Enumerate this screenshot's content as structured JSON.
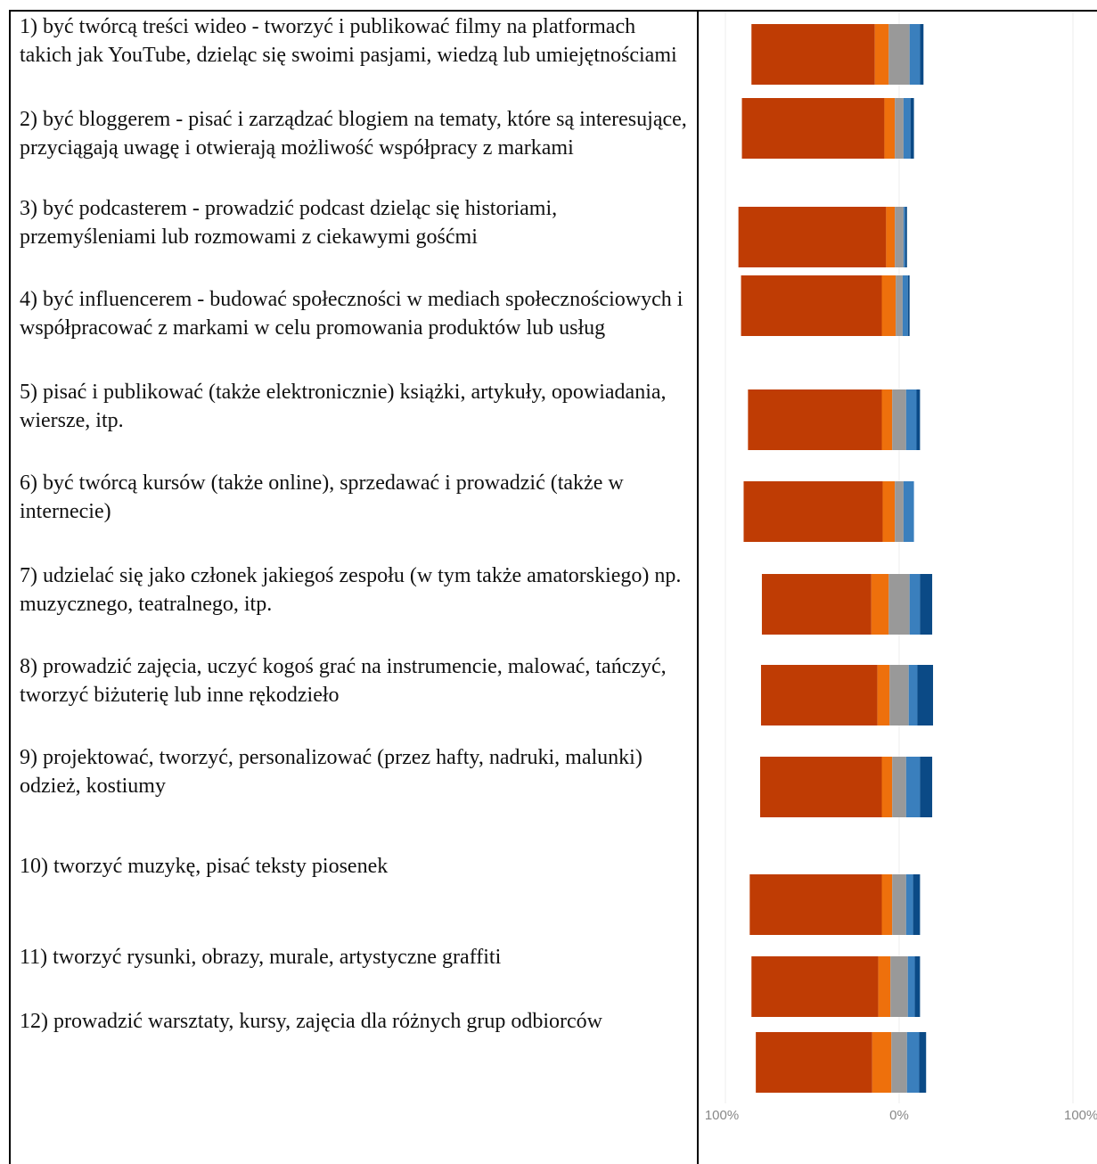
{
  "items": [
    "1) być twórcą treści wideo - tworzyć i publikować filmy na platformach takich jak YouTube, dzieląc się swoimi pasjami, wiedzą lub umiejętnościami",
    "2) być bloggerem - pisać i zarządzać blogiem na tematy, które są interesujące, przyciągają uwagę i otwierają możliwość współpracy z markami",
    "3) być podcasterem - prowadzić podcast dzieląc się historiami, przemyśleniami lub rozmowami z ciekawymi gośćmi",
    "4) być influencerem - budować społeczności w mediach społecznościowych i współpracować z markami w celu promowania produktów lub usług",
    "5) pisać i publikować (także elektronicznie) książki, artykuły, opowiadania, wiersze, itp.",
    "6) być twórcą kursów (także online), sprzedawać i prowadzić (także w internecie)",
    "7) udzielać się jako członek jakiegoś zespołu (w tym także amatorskiego) np. muzycznego, teatralnego, itp.",
    "8) prowadzić zajęcia, uczyć kogoś grać na instrumencie, malować, tańczyć, tworzyć biżuterię lub inne rękodzieło",
    "9) projektować, tworzyć, personalizować (przez hafty, nadruki, malunki) odzież, kostiumy",
    "10) tworzyć muzykę, pisać teksty piosenek",
    "11) tworzyć rysunki, obrazy, murale, artystyczne graffiti",
    "12) prowadzić warsztaty, kursy, zajęcia dla różnych grup odbiorców"
  ],
  "chart_data": {
    "type": "bar",
    "orientation": "horizontal",
    "stacked": "diverging",
    "xlim": [
      -100,
      100
    ],
    "xticks": [
      "100%",
      "0%",
      "100%"
    ],
    "colors": [
      "#bf3c04",
      "#ee700c",
      "#999999",
      "#3a7fbd",
      "#0b4a86"
    ],
    "rows": [
      {
        "values": [
          71,
          8,
          12,
          6,
          2
        ]
      },
      {
        "values": [
          82,
          6,
          5,
          4,
          2
        ]
      },
      {
        "values": [
          85,
          5,
          5,
          1,
          1
        ]
      },
      {
        "values": [
          81,
          8,
          4,
          3,
          1
        ]
      },
      {
        "values": [
          77,
          6,
          8,
          6,
          2
        ]
      },
      {
        "values": [
          80,
          7,
          5,
          6,
          0
        ]
      },
      {
        "values": [
          63,
          10,
          12,
          6,
          7
        ]
      },
      {
        "values": [
          67,
          7,
          11,
          5,
          9
        ]
      },
      {
        "values": [
          70,
          6,
          8,
          8,
          7
        ]
      },
      {
        "values": [
          76,
          6,
          8,
          4,
          4
        ]
      },
      {
        "values": [
          73,
          7,
          10,
          4,
          3
        ]
      },
      {
        "values": [
          67,
          11,
          9,
          7,
          4
        ]
      }
    ]
  }
}
